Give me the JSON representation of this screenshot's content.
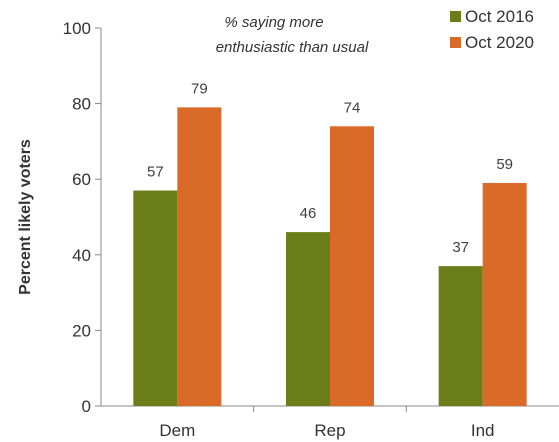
{
  "chart_data": {
    "type": "bar",
    "categories": [
      "Dem",
      "Rep",
      "Ind"
    ],
    "series": [
      {
        "name": "Oct 2016",
        "color": "#6a7d19",
        "values": [
          57,
          46,
          37
        ]
      },
      {
        "name": "Oct 2020",
        "color": "#d96a28",
        "values": [
          79,
          74,
          59
        ]
      }
    ],
    "ylabel": "Percent likely voters",
    "xlabel": "",
    "ylim": [
      0,
      100
    ],
    "yticks": [
      0,
      20,
      40,
      60,
      80,
      100
    ],
    "annotation": [
      "% saying more",
      "enthusiastic than usual"
    ],
    "legend_position": "top-right",
    "grid": false
  }
}
